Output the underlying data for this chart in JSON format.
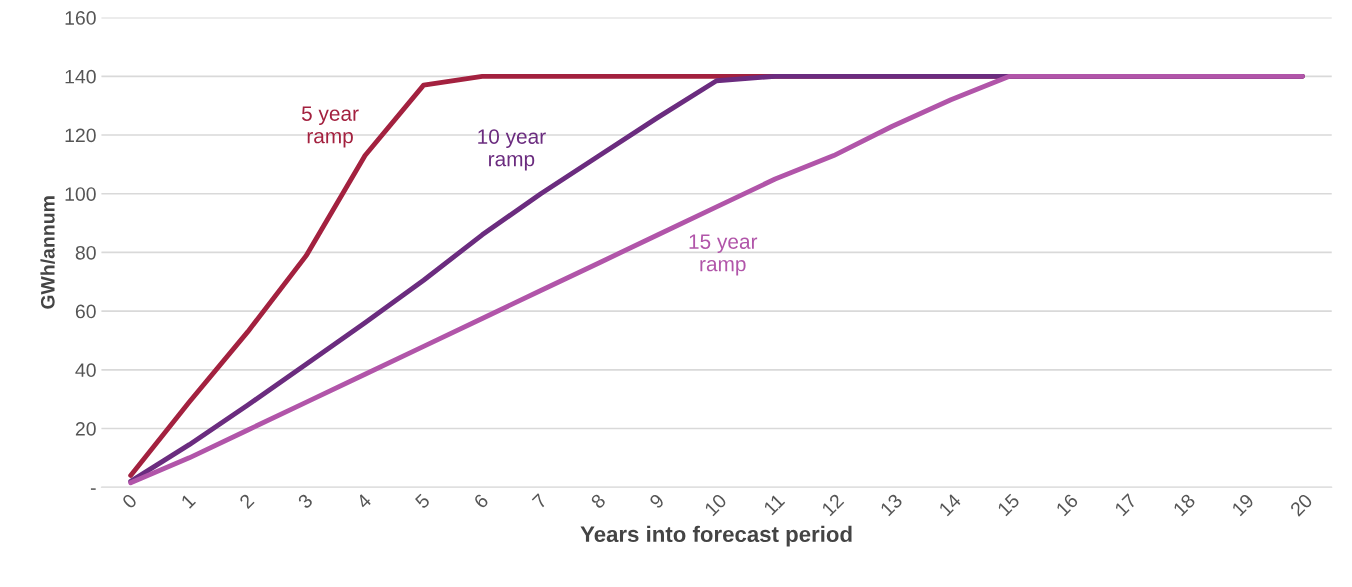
{
  "chart_data": {
    "type": "line",
    "xlabel": "Years into forecast period",
    "ylabel": "GWh/annum",
    "categories": [
      "0",
      "1",
      "2",
      "3",
      "4",
      "5",
      "6",
      "7",
      "8",
      "9",
      "10",
      "11",
      "12",
      "13",
      "14",
      "15",
      "16",
      "17",
      "18",
      "19",
      "20"
    ],
    "series": [
      {
        "name": "5 year\nramp",
        "color": "#a3213f",
        "values": [
          4,
          29,
          53,
          79,
          113,
          137,
          140,
          140,
          140,
          140,
          140,
          140,
          140,
          140,
          140,
          140,
          140,
          140,
          140,
          140,
          140
        ]
      },
      {
        "name": "10 year\nramp",
        "color": "#6b2c7f",
        "values": [
          2,
          14.5,
          28,
          42,
          56,
          70.5,
          86,
          100,
          113,
          126,
          138.5,
          140,
          140,
          140,
          140,
          140,
          140,
          140,
          140,
          140,
          140
        ]
      },
      {
        "name": "15 year\nramp",
        "color": "#b155a9",
        "values": [
          1.5,
          10,
          19.5,
          29,
          38.5,
          48,
          57.5,
          67,
          76.5,
          86,
          95.5,
          105,
          113,
          123,
          132,
          140,
          140,
          140,
          140,
          140,
          140
        ]
      }
    ],
    "ylim": [
      0,
      160
    ],
    "yticks": [
      {
        "value": 0,
        "label": "-"
      },
      20,
      40,
      60,
      80,
      100,
      120,
      140,
      160
    ],
    "grid": "y",
    "marker": "none",
    "line_style": "solid"
  }
}
